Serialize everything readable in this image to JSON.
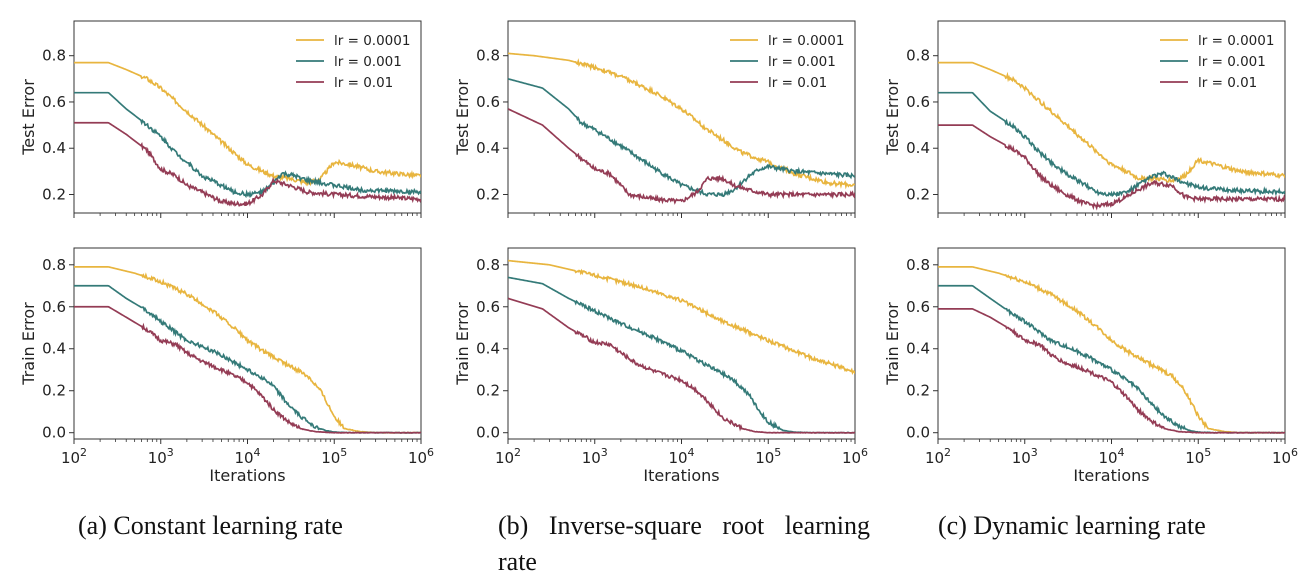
{
  "colors": {
    "lr1": "#e8b53f",
    "lr2": "#347a78",
    "lr3": "#943c55"
  },
  "legend_labels": [
    "lr = 0.0001",
    "lr = 0.001",
    "lr = 0.01"
  ],
  "captions": [
    "(a) Constant learning rate",
    "(b) Inverse-square root learning rate",
    "(c) Dynamic learning rate"
  ],
  "xlabel": "Iterations",
  "chart_data": [
    {
      "type": "line",
      "panel": "a-top",
      "xlabel": "",
      "ylabel": "Test Error",
      "xscale": "log",
      "xlim": [
        100,
        1000000
      ],
      "ylim": [
        0.12,
        0.95
      ],
      "yticks": [
        0.2,
        0.4,
        0.6,
        0.8
      ],
      "legend": "top-right",
      "series": [
        {
          "name": "lr = 0.0001",
          "x": [
            100,
            250,
            400,
            700,
            1000,
            2000,
            4000,
            7000,
            10000,
            15000,
            20000,
            30000,
            50000,
            70000,
            100000,
            150000,
            300000,
            1000000
          ],
          "y": [
            0.77,
            0.77,
            0.74,
            0.7,
            0.66,
            0.56,
            0.46,
            0.38,
            0.33,
            0.3,
            0.28,
            0.27,
            0.25,
            0.27,
            0.34,
            0.33,
            0.3,
            0.28
          ]
        },
        {
          "name": "lr = 0.001",
          "x": [
            100,
            250,
            400,
            700,
            1000,
            1500,
            2000,
            3000,
            5000,
            7000,
            10000,
            15000,
            20000,
            25000,
            35000,
            50000,
            100000,
            200000,
            1000000
          ],
          "y": [
            0.64,
            0.64,
            0.57,
            0.5,
            0.45,
            0.38,
            0.34,
            0.28,
            0.24,
            0.21,
            0.2,
            0.21,
            0.25,
            0.29,
            0.28,
            0.26,
            0.24,
            0.22,
            0.21
          ]
        },
        {
          "name": "lr = 0.01",
          "x": [
            100,
            250,
            400,
            700,
            1000,
            1500,
            2000,
            3000,
            5000,
            7000,
            10000,
            15000,
            20000,
            30000,
            50000,
            100000,
            300000,
            1000000
          ],
          "y": [
            0.51,
            0.51,
            0.46,
            0.39,
            0.31,
            0.28,
            0.24,
            0.21,
            0.17,
            0.16,
            0.16,
            0.2,
            0.26,
            0.24,
            0.21,
            0.2,
            0.19,
            0.18
          ]
        }
      ]
    },
    {
      "type": "line",
      "panel": "b-top",
      "xlabel": "",
      "ylabel": "Test Error",
      "xscale": "log",
      "xlim": [
        100,
        1000000
      ],
      "ylim": [
        0.12,
        0.95
      ],
      "yticks": [
        0.2,
        0.4,
        0.6,
        0.8
      ],
      "legend": "top-right",
      "series": [
        {
          "name": "lr = 0.0001",
          "x": [
            100,
            200,
            500,
            1000,
            2000,
            5000,
            10000,
            20000,
            50000,
            100000,
            200000,
            500000,
            1000000
          ],
          "y": [
            0.81,
            0.8,
            0.78,
            0.75,
            0.71,
            0.64,
            0.57,
            0.48,
            0.38,
            0.34,
            0.29,
            0.25,
            0.24
          ]
        },
        {
          "name": "lr = 0.001",
          "x": [
            100,
            250,
            500,
            700,
            1000,
            2000,
            5000,
            10000,
            20000,
            30000,
            40000,
            60000,
            80000,
            100000,
            200000,
            1000000
          ],
          "y": [
            0.7,
            0.66,
            0.57,
            0.51,
            0.48,
            0.41,
            0.31,
            0.24,
            0.2,
            0.2,
            0.22,
            0.28,
            0.31,
            0.32,
            0.3,
            0.28
          ]
        },
        {
          "name": "lr = 0.01",
          "x": [
            100,
            250,
            500,
            1000,
            1500,
            2500,
            5000,
            10000,
            15000,
            20000,
            30000,
            40000,
            60000,
            100000,
            300000,
            1000000
          ],
          "y": [
            0.57,
            0.5,
            0.4,
            0.31,
            0.29,
            0.2,
            0.18,
            0.17,
            0.21,
            0.27,
            0.27,
            0.24,
            0.22,
            0.2,
            0.2,
            0.2
          ]
        }
      ]
    },
    {
      "type": "line",
      "panel": "c-top",
      "xlabel": "",
      "ylabel": "Test Error",
      "xscale": "log",
      "xlim": [
        100,
        1000000
      ],
      "ylim": [
        0.12,
        0.95
      ],
      "yticks": [
        0.2,
        0.4,
        0.6,
        0.8
      ],
      "legend": "top-right",
      "series": [
        {
          "name": "lr = 0.0001",
          "x": [
            100,
            250,
            400,
            700,
            1000,
            2000,
            4000,
            7000,
            10000,
            15000,
            20000,
            30000,
            50000,
            70000,
            100000,
            150000,
            300000,
            1000000
          ],
          "y": [
            0.77,
            0.77,
            0.74,
            0.7,
            0.66,
            0.56,
            0.46,
            0.38,
            0.33,
            0.3,
            0.27,
            0.27,
            0.26,
            0.28,
            0.35,
            0.33,
            0.3,
            0.28
          ]
        },
        {
          "name": "lr = 0.001",
          "x": [
            100,
            250,
            400,
            700,
            1000,
            1500,
            2000,
            3000,
            5000,
            7000,
            10000,
            15000,
            20000,
            30000,
            40000,
            60000,
            100000,
            200000,
            1000000
          ],
          "y": [
            0.64,
            0.64,
            0.56,
            0.5,
            0.45,
            0.38,
            0.34,
            0.29,
            0.24,
            0.21,
            0.2,
            0.21,
            0.24,
            0.28,
            0.29,
            0.26,
            0.23,
            0.22,
            0.21
          ]
        },
        {
          "name": "lr = 0.01",
          "x": [
            100,
            250,
            400,
            700,
            1000,
            1500,
            2000,
            3000,
            5000,
            7000,
            10000,
            15000,
            20000,
            30000,
            50000,
            70000,
            100000,
            1000000
          ],
          "y": [
            0.5,
            0.5,
            0.45,
            0.4,
            0.36,
            0.28,
            0.24,
            0.2,
            0.16,
            0.15,
            0.16,
            0.19,
            0.22,
            0.25,
            0.24,
            0.19,
            0.18,
            0.18
          ]
        }
      ]
    },
    {
      "type": "line",
      "panel": "a-bottom",
      "xlabel": "Iterations",
      "ylabel": "Train Error",
      "xscale": "log",
      "xlim": [
        100,
        1000000
      ],
      "ylim": [
        -0.03,
        0.88
      ],
      "yticks": [
        0.0,
        0.2,
        0.4,
        0.6,
        0.8
      ],
      "series": [
        {
          "name": "lr = 0.0001",
          "x": [
            100,
            250,
            500,
            1000,
            2000,
            4000,
            7000,
            10000,
            15000,
            20000,
            30000,
            50000,
            70000,
            100000,
            130000,
            200000,
            300000,
            1000000
          ],
          "y": [
            0.79,
            0.79,
            0.76,
            0.72,
            0.66,
            0.58,
            0.5,
            0.44,
            0.39,
            0.36,
            0.32,
            0.27,
            0.2,
            0.08,
            0.02,
            0.005,
            0.0,
            0.0
          ]
        },
        {
          "name": "lr = 0.001",
          "x": [
            100,
            250,
            400,
            700,
            1000,
            2000,
            3000,
            5000,
            10000,
            15000,
            20000,
            30000,
            40000,
            60000,
            80000,
            100000,
            150000,
            1000000
          ],
          "y": [
            0.7,
            0.7,
            0.64,
            0.58,
            0.53,
            0.44,
            0.41,
            0.37,
            0.3,
            0.26,
            0.22,
            0.13,
            0.08,
            0.03,
            0.01,
            0.003,
            0.0,
            0.0
          ]
        },
        {
          "name": "lr = 0.01",
          "x": [
            100,
            250,
            400,
            700,
            1000,
            1500,
            2000,
            3000,
            5000,
            10000,
            15000,
            20000,
            30000,
            40000,
            60000,
            100000,
            1000000
          ],
          "y": [
            0.6,
            0.6,
            0.55,
            0.49,
            0.44,
            0.42,
            0.38,
            0.34,
            0.3,
            0.24,
            0.17,
            0.11,
            0.05,
            0.02,
            0.005,
            0.0,
            0.0
          ]
        }
      ]
    },
    {
      "type": "line",
      "panel": "b-bottom",
      "xlabel": "Iterations",
      "ylabel": "Train Error",
      "xscale": "log",
      "xlim": [
        100,
        1000000
      ],
      "ylim": [
        -0.03,
        0.88
      ],
      "yticks": [
        0.0,
        0.2,
        0.4,
        0.6,
        0.8
      ],
      "series": [
        {
          "name": "lr = 0.0001",
          "x": [
            100,
            300,
            1000,
            3000,
            10000,
            30000,
            100000,
            300000,
            1000000
          ],
          "y": [
            0.82,
            0.8,
            0.75,
            0.7,
            0.63,
            0.53,
            0.44,
            0.36,
            0.29
          ]
        },
        {
          "name": "lr = 0.001",
          "x": [
            100,
            250,
            500,
            1000,
            2000,
            3000,
            5000,
            10000,
            20000,
            40000,
            60000,
            80000,
            100000,
            150000,
            200000,
            300000,
            1000000
          ],
          "y": [
            0.74,
            0.71,
            0.64,
            0.58,
            0.52,
            0.49,
            0.45,
            0.39,
            0.32,
            0.25,
            0.18,
            0.1,
            0.05,
            0.01,
            0.003,
            0.0,
            0.0
          ]
        },
        {
          "name": "lr = 0.01",
          "x": [
            100,
            250,
            500,
            1000,
            1500,
            2000,
            3000,
            5000,
            10000,
            15000,
            20000,
            30000,
            50000,
            70000,
            100000,
            1000000
          ],
          "y": [
            0.64,
            0.59,
            0.5,
            0.43,
            0.42,
            0.38,
            0.33,
            0.29,
            0.25,
            0.2,
            0.15,
            0.07,
            0.02,
            0.005,
            0.0,
            0.0
          ]
        }
      ]
    },
    {
      "type": "line",
      "panel": "c-bottom",
      "xlabel": "Iterations",
      "ylabel": "Train Error",
      "xscale": "log",
      "xlim": [
        100,
        1000000
      ],
      "ylim": [
        -0.03,
        0.88
      ],
      "yticks": [
        0.0,
        0.2,
        0.4,
        0.6,
        0.8
      ],
      "series": [
        {
          "name": "lr = 0.0001",
          "x": [
            100,
            250,
            500,
            1000,
            2000,
            4000,
            7000,
            10000,
            15000,
            20000,
            30000,
            50000,
            70000,
            100000,
            130000,
            200000,
            300000,
            1000000
          ],
          "y": [
            0.79,
            0.79,
            0.76,
            0.72,
            0.66,
            0.58,
            0.5,
            0.44,
            0.39,
            0.36,
            0.32,
            0.27,
            0.2,
            0.08,
            0.02,
            0.005,
            0.0,
            0.0
          ]
        },
        {
          "name": "lr = 0.001",
          "x": [
            100,
            250,
            400,
            700,
            1000,
            2000,
            3000,
            5000,
            10000,
            15000,
            20000,
            30000,
            40000,
            60000,
            80000,
            100000,
            150000,
            1000000
          ],
          "y": [
            0.7,
            0.7,
            0.64,
            0.57,
            0.53,
            0.44,
            0.41,
            0.37,
            0.3,
            0.25,
            0.21,
            0.13,
            0.08,
            0.03,
            0.01,
            0.003,
            0.0,
            0.0
          ]
        },
        {
          "name": "lr = 0.01",
          "x": [
            100,
            250,
            400,
            700,
            1000,
            1500,
            2000,
            3000,
            5000,
            10000,
            15000,
            20000,
            30000,
            40000,
            60000,
            100000,
            1000000
          ],
          "y": [
            0.59,
            0.59,
            0.55,
            0.49,
            0.44,
            0.42,
            0.37,
            0.33,
            0.3,
            0.24,
            0.17,
            0.11,
            0.05,
            0.02,
            0.005,
            0.0,
            0.0
          ]
        }
      ]
    }
  ]
}
